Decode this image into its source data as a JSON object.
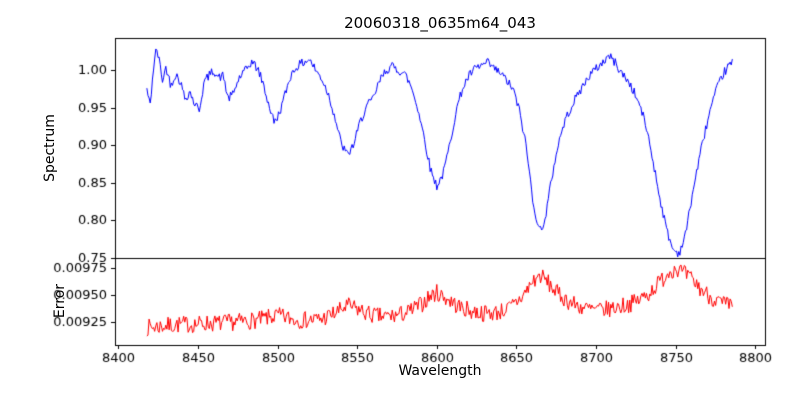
{
  "title": "20060318_0635m64_043",
  "x_axis": {
    "label": "Wavelength",
    "lim": [
      8398,
      8806
    ],
    "ticks": [
      8400,
      8450,
      8500,
      8550,
      8600,
      8650,
      8700,
      8750,
      8800
    ],
    "tick_labels": [
      "8400",
      "8450",
      "8500",
      "8550",
      "8600",
      "8650",
      "8700",
      "8750",
      "8800"
    ]
  },
  "colors": {
    "spectrum_line": "#0000ff",
    "error_line": "#ff0000",
    "axis": "#000000",
    "background": "#ffffff",
    "text": "#000000"
  },
  "chart_data": [
    {
      "type": "line",
      "name": "spectrum",
      "ylabel": "Spectrum",
      "color": "#0000ff",
      "x_range": [
        8418,
        8786
      ],
      "ylim": [
        0.75,
        1.043
      ],
      "yticks": [
        0.75,
        0.8,
        0.85,
        0.9,
        0.95,
        1.0
      ],
      "ytick_labels": [
        "0.75",
        "0.80",
        "0.85",
        "0.90",
        "0.95",
        "1.00"
      ],
      "noise_amplitude": 0.006,
      "noise_seed": 42,
      "sample_step": 0.7,
      "points": [
        [
          8418,
          0.975
        ],
        [
          8420,
          0.952
        ],
        [
          8422,
          1.0
        ],
        [
          8424,
          1.03
        ],
        [
          8426,
          1.01
        ],
        [
          8428,
          0.985
        ],
        [
          8430,
          1.005
        ],
        [
          8433,
          0.98
        ],
        [
          8436,
          0.995
        ],
        [
          8439,
          0.985
        ],
        [
          8442,
          0.962
        ],
        [
          8445,
          0.972
        ],
        [
          8448,
          0.955
        ],
        [
          8451,
          0.948
        ],
        [
          8454,
          0.985
        ],
        [
          8457,
          0.993
        ],
        [
          8460,
          1.0
        ],
        [
          8463,
          0.99
        ],
        [
          8466,
          0.993
        ],
        [
          8469,
          0.962
        ],
        [
          8472,
          0.968
        ],
        [
          8476,
          0.99
        ],
        [
          8480,
          1.0
        ],
        [
          8484,
          1.012
        ],
        [
          8488,
          1.0
        ],
        [
          8491,
          0.982
        ],
        [
          8494,
          0.958
        ],
        [
          8498,
          0.93
        ],
        [
          8501,
          0.942
        ],
        [
          8504,
          0.962
        ],
        [
          8508,
          0.992
        ],
        [
          8512,
          1.005
        ],
        [
          8516,
          1.01
        ],
        [
          8520,
          1.015
        ],
        [
          8524,
          1.0
        ],
        [
          8528,
          0.988
        ],
        [
          8532,
          0.968
        ],
        [
          8536,
          0.938
        ],
        [
          8540,
          0.902
        ],
        [
          8544,
          0.887
        ],
        [
          8548,
          0.902
        ],
        [
          8552,
          0.932
        ],
        [
          8556,
          0.952
        ],
        [
          8560,
          0.962
        ],
        [
          8564,
          0.985
        ],
        [
          8568,
          1.0
        ],
        [
          8572,
          1.005
        ],
        [
          8576,
          1.0
        ],
        [
          8580,
          0.995
        ],
        [
          8584,
          0.978
        ],
        [
          8588,
          0.95
        ],
        [
          8592,
          0.912
        ],
        [
          8596,
          0.868
        ],
        [
          8600,
          0.846
        ],
        [
          8604,
          0.862
        ],
        [
          8608,
          0.9
        ],
        [
          8612,
          0.945
        ],
        [
          8616,
          0.975
        ],
        [
          8620,
          0.992
        ],
        [
          8624,
          1.002
        ],
        [
          8628,
          1.006
        ],
        [
          8632,
          1.01
        ],
        [
          8636,
          1.002
        ],
        [
          8640,
          0.996
        ],
        [
          8644,
          0.986
        ],
        [
          8648,
          0.974
        ],
        [
          8652,
          0.945
        ],
        [
          8656,
          0.9
        ],
        [
          8660,
          0.832
        ],
        [
          8664,
          0.786
        ],
        [
          8668,
          0.8
        ],
        [
          8672,
          0.855
        ],
        [
          8676,
          0.9
        ],
        [
          8680,
          0.93
        ],
        [
          8684,
          0.95
        ],
        [
          8688,
          0.966
        ],
        [
          8692,
          0.98
        ],
        [
          8696,
          0.994
        ],
        [
          8700,
          1.002
        ],
        [
          8704,
          1.01
        ],
        [
          8708,
          1.02
        ],
        [
          8712,
          1.01
        ],
        [
          8716,
          0.996
        ],
        [
          8720,
          0.986
        ],
        [
          8724,
          0.97
        ],
        [
          8728,
          0.95
        ],
        [
          8732,
          0.92
        ],
        [
          8736,
          0.876
        ],
        [
          8740,
          0.83
        ],
        [
          8744,
          0.79
        ],
        [
          8748,
          0.762
        ],
        [
          8752,
          0.756
        ],
        [
          8756,
          0.78
        ],
        [
          8760,
          0.83
        ],
        [
          8764,
          0.875
        ],
        [
          8768,
          0.915
        ],
        [
          8772,
          0.95
        ],
        [
          8776,
          0.976
        ],
        [
          8780,
          0.996
        ],
        [
          8783,
          1.005
        ],
        [
          8786,
          1.012
        ]
      ]
    },
    {
      "type": "line",
      "name": "error",
      "ylabel": "Error",
      "color": "#ff0000",
      "x_range": [
        8418,
        8786
      ],
      "ylim": [
        0.00904,
        0.00984
      ],
      "yticks": [
        0.00925,
        0.0095,
        0.00975
      ],
      "ytick_labels": [
        "0.00925",
        "0.00950",
        "0.00975"
      ],
      "noise_amplitude": 8e-05,
      "noise_seed": 7,
      "sample_step": 0.7,
      "points": [
        [
          8418,
          0.0092
        ],
        [
          8425,
          0.00921
        ],
        [
          8432,
          0.00922
        ],
        [
          8440,
          0.00923
        ],
        [
          8448,
          0.00923
        ],
        [
          8456,
          0.00924
        ],
        [
          8464,
          0.00924
        ],
        [
          8472,
          0.00925
        ],
        [
          8480,
          0.00926
        ],
        [
          8488,
          0.00927
        ],
        [
          8494,
          0.00929
        ],
        [
          8500,
          0.00931
        ],
        [
          8506,
          0.00929
        ],
        [
          8512,
          0.00927
        ],
        [
          8520,
          0.00927
        ],
        [
          8528,
          0.00928
        ],
        [
          8536,
          0.00933
        ],
        [
          8544,
          0.0094
        ],
        [
          8550,
          0.00937
        ],
        [
          8558,
          0.00932
        ],
        [
          8566,
          0.0093
        ],
        [
          8574,
          0.00931
        ],
        [
          8582,
          0.00934
        ],
        [
          8590,
          0.00941
        ],
        [
          8596,
          0.00949
        ],
        [
          8600,
          0.00952
        ],
        [
          8606,
          0.00947
        ],
        [
          8614,
          0.00939
        ],
        [
          8622,
          0.00935
        ],
        [
          8630,
          0.00933
        ],
        [
          8638,
          0.00934
        ],
        [
          8646,
          0.00938
        ],
        [
          8654,
          0.00949
        ],
        [
          8660,
          0.00962
        ],
        [
          8665,
          0.00968
        ],
        [
          8670,
          0.00961
        ],
        [
          8676,
          0.00951
        ],
        [
          8684,
          0.00943
        ],
        [
          8692,
          0.00938
        ],
        [
          8700,
          0.00936
        ],
        [
          8708,
          0.00937
        ],
        [
          8716,
          0.0094
        ],
        [
          8724,
          0.00943
        ],
        [
          8732,
          0.0095
        ],
        [
          8740,
          0.00962
        ],
        [
          8746,
          0.00972
        ],
        [
          8750,
          0.00975
        ],
        [
          8754,
          0.00971
        ],
        [
          8760,
          0.00964
        ],
        [
          8766,
          0.00955
        ],
        [
          8772,
          0.00948
        ],
        [
          8779,
          0.00942
        ],
        [
          8786,
          0.00939
        ]
      ]
    }
  ]
}
